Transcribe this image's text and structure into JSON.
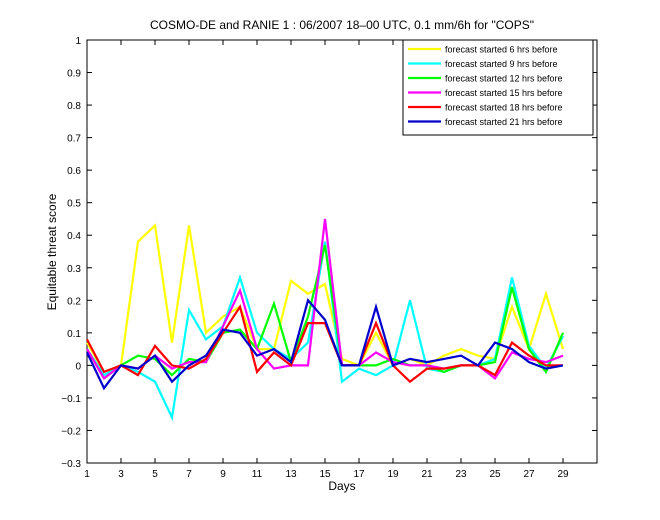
{
  "chart_data": {
    "type": "line",
    "title": "COSMO-DE and RANIE 1 : 06/2007 18–00 UTC, 0.1 mm/6h for \"COPS\"",
    "xlabel": "Days",
    "ylabel": "Equitable threat score",
    "xlim": [
      1,
      31
    ],
    "ylim": [
      -0.3,
      1
    ],
    "xticks": [
      1,
      3,
      5,
      7,
      9,
      11,
      13,
      15,
      17,
      19,
      21,
      23,
      25,
      27,
      29
    ],
    "yticks": [
      -0.3,
      -0.2,
      -0.1,
      0,
      0.1,
      0.2,
      0.3,
      0.4,
      0.5,
      0.6,
      0.7,
      0.8,
      0.9,
      1
    ],
    "ytick_labels": [
      "−0.3",
      "−0.2",
      "−0.1",
      "0",
      "0.1",
      "0.2",
      "0.3",
      "0.4",
      "0.5",
      "0.6",
      "0.7",
      "0.8",
      "0.9",
      "1"
    ],
    "grid": false,
    "legend_position": "top-right",
    "x": [
      1,
      2,
      3,
      4,
      5,
      6,
      7,
      8,
      9,
      10,
      11,
      12,
      13,
      14,
      15,
      16,
      17,
      18,
      19,
      20,
      21,
      22,
      23,
      24,
      25,
      26,
      27,
      28,
      29
    ],
    "series": [
      {
        "name": "forecast started 6 hrs before",
        "color": "#ffff00",
        "values": [
          0.07,
          -0.02,
          0.0,
          0.38,
          0.43,
          0.07,
          0.43,
          0.1,
          0.15,
          0.18,
          0.05,
          0.05,
          0.26,
          0.22,
          0.25,
          0.02,
          0.0,
          0.1,
          0.0,
          0.02,
          0.0,
          0.03,
          0.05,
          0.03,
          0.02,
          0.18,
          0.05,
          0.22,
          0.05
        ]
      },
      {
        "name": "forecast started 9 hrs before",
        "color": "#00ffff",
        "values": [
          0.05,
          -0.03,
          0.0,
          -0.02,
          -0.05,
          -0.16,
          0.17,
          0.08,
          0.12,
          0.27,
          0.1,
          0.05,
          0.02,
          0.07,
          0.38,
          -0.05,
          -0.01,
          -0.03,
          0.0,
          0.2,
          -0.01,
          -0.02,
          0.0,
          0.0,
          0.02,
          0.27,
          0.06,
          -0.01,
          0.09
        ]
      },
      {
        "name": "forecast started 12 hrs before",
        "color": "#00ff00",
        "values": [
          0.05,
          -0.04,
          0.0,
          0.03,
          0.02,
          -0.03,
          0.02,
          0.01,
          0.1,
          0.11,
          0.05,
          0.19,
          0.01,
          0.15,
          0.37,
          0.0,
          0.0,
          0.0,
          0.02,
          0.0,
          0.0,
          -0.02,
          0.0,
          0.0,
          0.01,
          0.24,
          0.05,
          -0.02,
          0.1
        ]
      },
      {
        "name": "forecast started 15 hrs before",
        "color": "#ff00ff",
        "values": [
          0.05,
          -0.04,
          0.0,
          -0.01,
          0.03,
          -0.01,
          0.01,
          0.01,
          0.12,
          0.23,
          0.05,
          -0.01,
          0.0,
          0.0,
          0.45,
          0.0,
          0.0,
          0.04,
          0.01,
          0.0,
          0.0,
          -0.01,
          0.0,
          0.0,
          -0.04,
          0.04,
          0.02,
          0.01,
          0.03
        ]
      },
      {
        "name": "forecast started 18 hrs before",
        "color": "#ff0000",
        "values": [
          0.08,
          -0.02,
          0.0,
          -0.03,
          0.06,
          0.0,
          -0.01,
          0.02,
          0.1,
          0.18,
          -0.02,
          0.04,
          0.0,
          0.13,
          0.13,
          0.0,
          0.0,
          0.13,
          0.0,
          -0.05,
          -0.01,
          -0.01,
          0.0,
          0.0,
          -0.03,
          0.07,
          0.03,
          0.0,
          0.0
        ]
      },
      {
        "name": "forecast started 21 hrs before",
        "color": "#0000cc",
        "values": [
          0.04,
          -0.07,
          0.0,
          -0.01,
          0.03,
          -0.05,
          0.0,
          0.03,
          0.11,
          0.1,
          0.03,
          0.05,
          0.01,
          0.2,
          0.14,
          0.0,
          0.0,
          0.18,
          0.0,
          0.02,
          0.01,
          0.02,
          0.03,
          0.0,
          0.07,
          0.05,
          0.01,
          -0.01,
          0.0
        ]
      }
    ]
  }
}
